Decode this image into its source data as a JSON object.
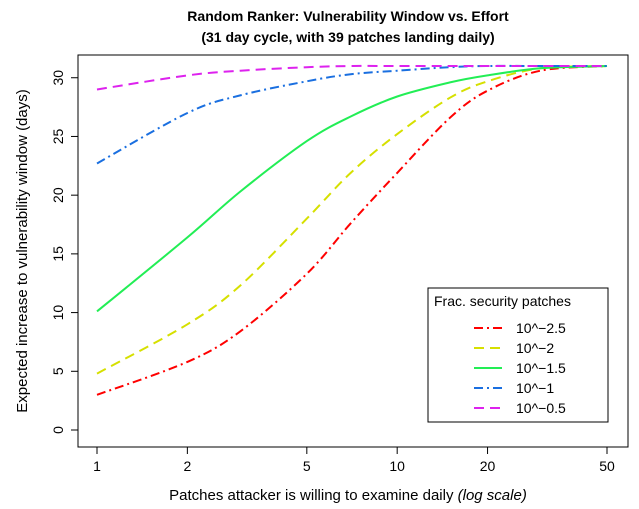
{
  "chart_data": {
    "type": "line",
    "title": "Random Ranker: Vulnerability Window vs. Effort",
    "subtitle": "(31 day cycle, with 39 patches landing daily)",
    "xlabel": "Patches attacker is willing to examine daily",
    "xlabel_note": "(log scale)",
    "ylabel": "Expected increase to vulnerability window (days)",
    "x_scale": "log",
    "xlim": [
      1,
      50
    ],
    "ylim": [
      0,
      31
    ],
    "x_ticks": [
      1,
      2,
      5,
      10,
      20,
      50
    ],
    "y_ticks": [
      0,
      5,
      10,
      15,
      20,
      25,
      30
    ],
    "grid": false,
    "legend_title": "Frac. security patches",
    "legend_position": "bottom-right",
    "x": [
      1,
      2,
      3,
      5,
      7,
      10,
      15,
      20,
      30,
      50
    ],
    "series": [
      {
        "name": "10^−2.5",
        "color": "#ff0000",
        "dash": "dash-dot",
        "values": [
          3.0,
          5.8,
          8.4,
          13.3,
          17.6,
          21.9,
          26.6,
          28.9,
          30.6,
          31.0
        ]
      },
      {
        "name": "10^−2",
        "color": "#d6e000",
        "dash": "dashed",
        "values": [
          4.8,
          9.0,
          12.3,
          18.0,
          21.9,
          25.2,
          28.3,
          29.7,
          30.8,
          31.0
        ]
      },
      {
        "name": "10^−1.5",
        "color": "#22ee55",
        "dash": "solid",
        "values": [
          10.1,
          16.4,
          20.3,
          24.6,
          26.7,
          28.4,
          29.6,
          30.2,
          30.8,
          31.0
        ]
      },
      {
        "name": "10^−1",
        "color": "#1a6fe0",
        "dash": "dash-dot",
        "values": [
          22.7,
          27.0,
          28.5,
          29.7,
          30.3,
          30.6,
          30.9,
          31.0,
          31.0,
          31.0
        ]
      },
      {
        "name": "10^−0.5",
        "color": "#dd22ee",
        "dash": "dashed",
        "values": [
          29.0,
          30.2,
          30.6,
          30.9,
          31.0,
          31.0,
          31.0,
          31.0,
          31.0,
          31.0
        ]
      }
    ]
  }
}
